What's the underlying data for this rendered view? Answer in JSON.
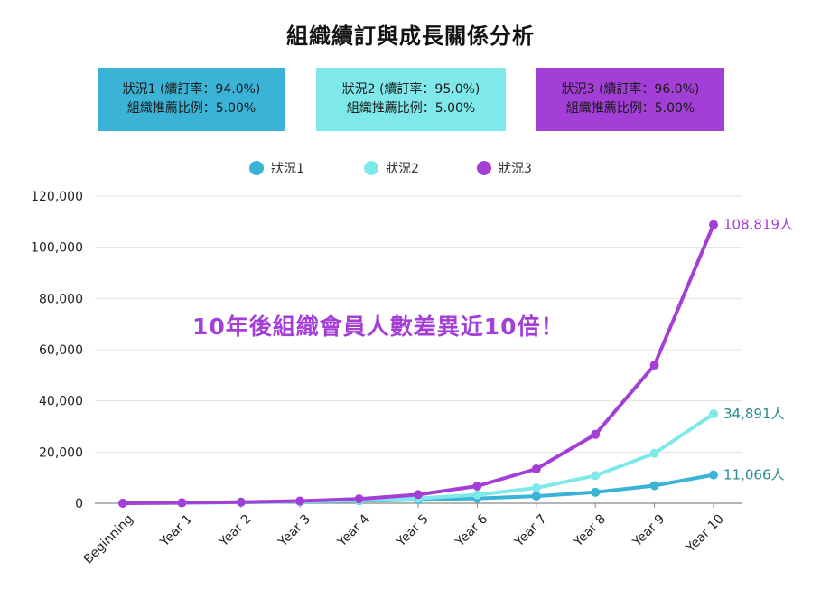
{
  "title": "組織續訂與成長關係分析",
  "scenarios": [
    {
      "line1": "狀況1 (續訂率：94.0%)",
      "line2": "組織推薦比例：5.00%"
    },
    {
      "line1": "狀況2 (續訂率：95.0%)",
      "line2": "組織推薦比例：5.00%"
    },
    {
      "line1": "狀況3 (續訂率：96.0%)",
      "line2": "組織推薦比例：5.00%"
    }
  ],
  "callout": "10年後組織會員人數差異近10倍！",
  "chart_data": {
    "type": "line",
    "categories": [
      "Beginning",
      "Year 1",
      "Year 2",
      "Year 3",
      "Year 4",
      "Year 5",
      "Year 6",
      "Year 7",
      "Year 8",
      "Year 9",
      "Year 10"
    ],
    "ylim": [
      0,
      120000
    ],
    "yticks": [
      0,
      20000,
      40000,
      60000,
      80000,
      100000,
      120000
    ],
    "ytick_labels": [
      "0",
      "20,000",
      "40,000",
      "60,000",
      "80,000",
      "100,000",
      "120,000"
    ],
    "grid": true,
    "legend_position": "top-center",
    "series": [
      {
        "name": "狀況1",
        "color": "#3bb3d6",
        "label_color": "#2a8c8c",
        "values": [
          0,
          150,
          400,
          650,
          1000,
          1400,
          1900,
          2800,
          4300,
          6900,
          11066
        ],
        "end_label": "11,066人"
      },
      {
        "name": "狀況2",
        "color": "#7fe8ea",
        "label_color": "#2a8c8c",
        "values": [
          0,
          150,
          400,
          700,
          1100,
          1900,
          3300,
          6000,
          10800,
          19500,
          34891
        ],
        "end_label": "34,891人"
      },
      {
        "name": "狀況3",
        "color": "#a33ed6",
        "label_color": "#a33ed6",
        "values": [
          0,
          200,
          450,
          900,
          1700,
          3400,
          6700,
          13400,
          26900,
          54000,
          108819
        ],
        "end_label": "108,819人"
      }
    ]
  }
}
